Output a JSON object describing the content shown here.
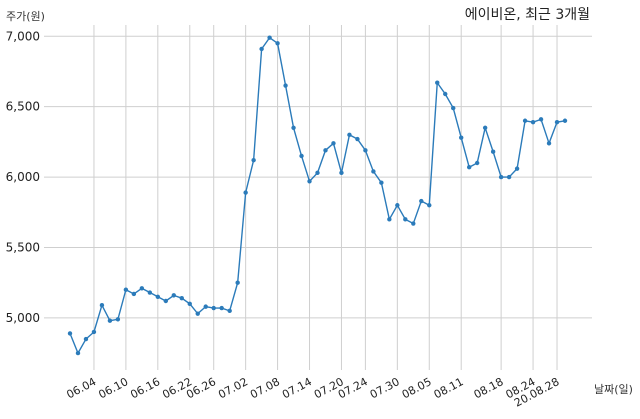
{
  "chart_data": {
    "type": "line",
    "title": "에이비온, 최근 3개월",
    "ylabel": "주가(원)",
    "xlabel": "날짜(일)",
    "ylim": [
      4630,
      7080
    ],
    "yticks": [
      5000,
      5500,
      6000,
      6500,
      7000
    ],
    "ytick_labels": [
      "5,000",
      "5,500",
      "6,000",
      "6,500",
      "7,000"
    ],
    "xtick_labels": [
      "06.04",
      "06.10",
      "06.16",
      "06.22",
      "06.26",
      "07.02",
      "07.08",
      "07.14",
      "07.20",
      "07.24",
      "07.30",
      "08.05",
      "08.11",
      "08.18",
      "08.24",
      "20.08.28"
    ],
    "xtick_positions": [
      3,
      7,
      11,
      15,
      18,
      22,
      26,
      30,
      34,
      37,
      41,
      45,
      49,
      54,
      58,
      61
    ],
    "grid": true,
    "color": "#2b7bba",
    "series": [
      {
        "values": [
          4890,
          4750,
          4850,
          4900,
          5090,
          4980,
          4990,
          5200,
          5170,
          5210,
          5180,
          5150,
          5120,
          5160,
          5140,
          5100,
          5030,
          5080,
          5070,
          5070,
          5050,
          5250,
          5890,
          6120,
          6910,
          6990,
          6950,
          6650,
          6350,
          6150,
          5970,
          6030,
          6190,
          6240,
          6030,
          6300,
          6270,
          6190,
          6040,
          5960,
          5700,
          5800,
          5700,
          5670,
          5830,
          5800,
          6670,
          6590,
          6490,
          6280,
          6070,
          6100,
          6350,
          6180,
          6000,
          6000,
          6060,
          6400,
          6390,
          6410,
          6240,
          6390,
          6400
        ]
      }
    ]
  }
}
